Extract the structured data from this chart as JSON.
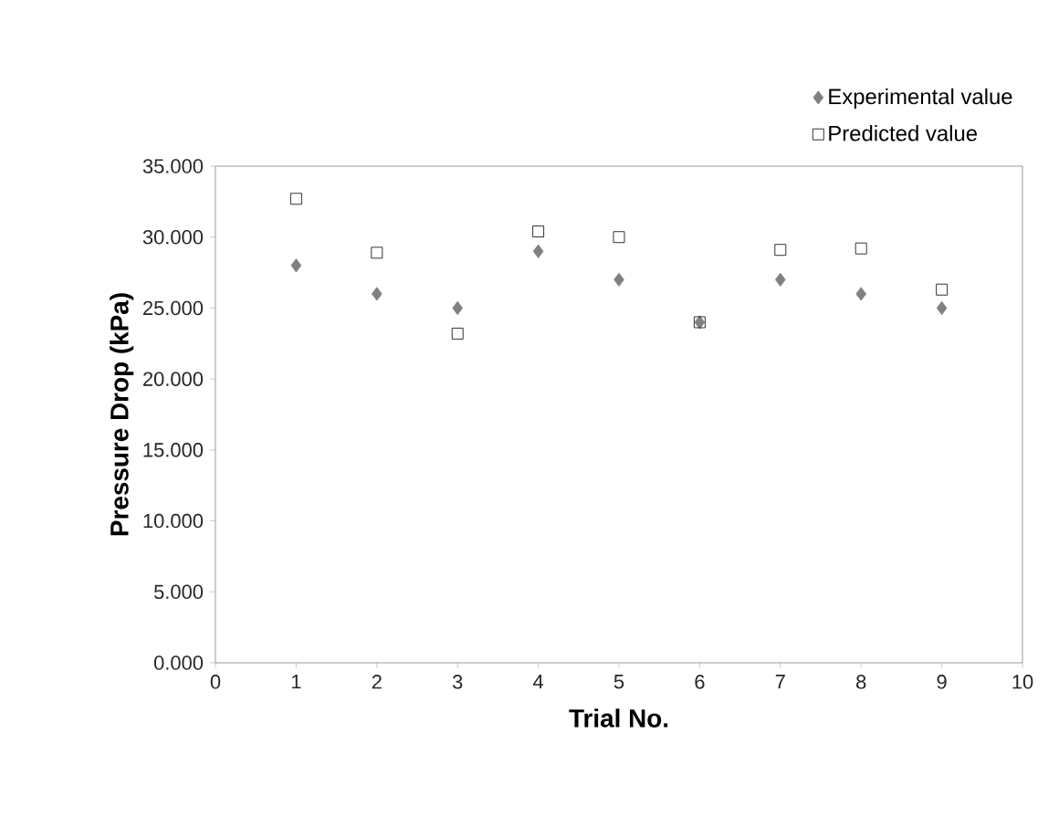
{
  "chart_data": {
    "type": "scatter",
    "xlabel": "Trial  No.",
    "ylabel": "Pressure Drop (kPa)",
    "x": [
      1,
      2,
      3,
      4,
      5,
      6,
      7,
      8,
      9
    ],
    "series": [
      {
        "name": "Experimental value",
        "color": "#808080",
        "marker": "diamond",
        "values": [
          28,
          26,
          25,
          29,
          27,
          24,
          27,
          26,
          25
        ]
      },
      {
        "name": "Predicted value",
        "color": "#000000",
        "marker": "square",
        "values": [
          32.7,
          28.9,
          23.2,
          30.4,
          30.0,
          24.0,
          29.1,
          29.2,
          26.3
        ]
      }
    ],
    "xlim": [
      0,
      10
    ],
    "xticks": [
      0,
      1,
      2,
      3,
      4,
      5,
      6,
      7,
      8,
      9,
      10
    ],
    "ylim": [
      0,
      35
    ],
    "yticks": [
      {
        "value": 0,
        "label": "0.000"
      },
      {
        "value": 5,
        "label": "5.000"
      },
      {
        "value": 10,
        "label": "10.000"
      },
      {
        "value": 15,
        "label": "15.000"
      },
      {
        "value": 20,
        "label": "20.000"
      },
      {
        "value": 25,
        "label": "25.000"
      },
      {
        "value": 30,
        "label": "30.000"
      },
      {
        "value": 35,
        "label": "35.000"
      }
    ],
    "grid": false,
    "legend": "top right"
  }
}
